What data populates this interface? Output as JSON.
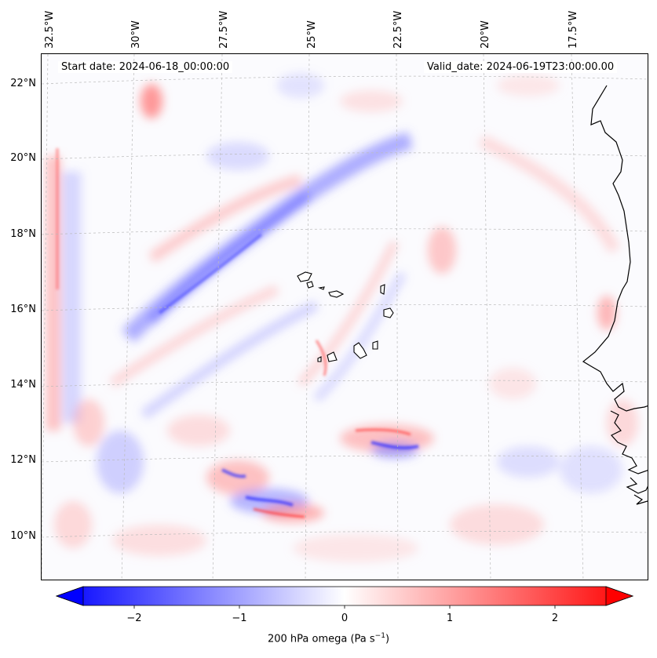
{
  "map": {
    "start_date_text": "Start date: 2024-06-18_00:00:00",
    "valid_date_text": "Valid_date: 2024-06-19T23:00:00.00",
    "lon_labels": [
      "32.5°W",
      "30°W",
      "27.5°W",
      "25°W",
      "22.5°W",
      "20°W",
      "17.5°W"
    ],
    "lat_labels": [
      "22°N",
      "20°N",
      "18°N",
      "16°N",
      "14°N",
      "12°N",
      "10°N"
    ],
    "field": "200 hPa omega",
    "colormap": "bwr"
  },
  "colorbar": {
    "ticks": [
      "−2",
      "−1",
      "0",
      "1",
      "2"
    ],
    "label_prefix": "200 hPa omega (Pa s",
    "label_exp": "−1",
    "label_suffix": ")",
    "range": [
      -2.6,
      2.6
    ],
    "extend": "both",
    "colors": {
      "min": "#0000ff",
      "mid": "#ffffff",
      "max": "#ff0000"
    }
  }
}
